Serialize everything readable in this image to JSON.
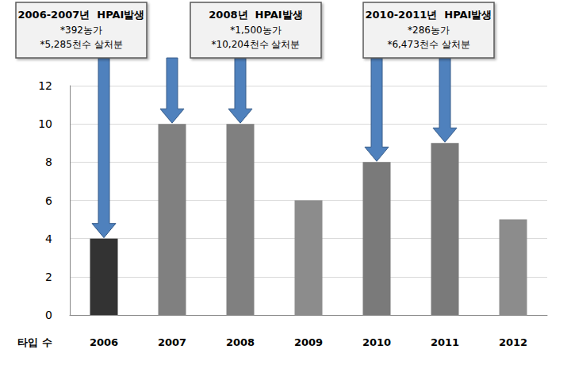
{
  "chart_data": {
    "type": "bar",
    "categories": [
      "2006",
      "2007",
      "2008",
      "2009",
      "2010",
      "2011",
      "2012"
    ],
    "values": [
      4,
      10,
      10,
      6,
      8,
      9,
      5
    ],
    "colors": [
      "#333333",
      "#808080",
      "#808080",
      "#8c8c8c",
      "#7a7a7a",
      "#7a7a7a",
      "#8c8c8c"
    ],
    "ylim": [
      0,
      12
    ],
    "yticks": [
      0,
      2,
      4,
      6,
      8,
      10,
      12
    ],
    "grid": true,
    "xlabel": "타입 수",
    "annotations": [
      {
        "title": "2006-2007년  HPAI발생",
        "lines": [
          "*392농가",
          "*5,285천수 살처분"
        ],
        "targets": [
          "2006",
          "2007"
        ]
      },
      {
        "title": "2008년  HPAI발생",
        "lines": [
          "*1,500농가",
          "*10,204천수 살처분"
        ],
        "targets": [
          "2008"
        ]
      },
      {
        "title": "2010-2011년  HPAI발생",
        "lines": [
          "*286농가",
          "*6,473천수 살처분"
        ],
        "targets": [
          "2010",
          "2011"
        ]
      }
    ]
  }
}
